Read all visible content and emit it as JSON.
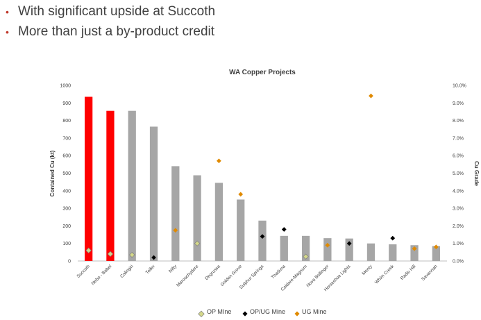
{
  "bullets": [
    "With significant upside at Succoth",
    "More than just a by-product credit"
  ],
  "colors": {
    "bullet": "#c0392b",
    "highlight_bar": "#ff0000",
    "bar": "#a6a6a6",
    "op_marker": "#d4d88a",
    "opug_marker": "#000000",
    "ug_marker": "#e08a00"
  },
  "chart_data": {
    "type": "bar",
    "title": "WA Copper Projects",
    "ylabel": "Contained Cu (kt)",
    "y2label": "Cu Grade",
    "ylim": [
      0,
      1000
    ],
    "y_ticks": [
      "0",
      "100",
      "200",
      "300",
      "400",
      "500",
      "600",
      "700",
      "800",
      "900",
      "1000"
    ],
    "y2lim": [
      0,
      10
    ],
    "y2_ticks": [
      "0.0%",
      "1.0%",
      "2.0%",
      "3.0%",
      "4.0%",
      "5.0%",
      "6.0%",
      "7.0%",
      "8.0%",
      "9.0%",
      "10.0%"
    ],
    "grid": false,
    "legend_position": "bottom",
    "categories": [
      "Succoth",
      "Nebo - Babel",
      "Calingiri",
      "Telfer",
      "Nifty",
      "Maroochydore",
      "Degrussa",
      "Golden Grove",
      "Sulphur Springs",
      "Thaduna",
      "Caldare-Magnum",
      "Nova Bollinger",
      "Horseshoe Lights",
      "Monty",
      "Whim Creek",
      "Radio Hill",
      "Savannah"
    ],
    "values": [
      935,
      855,
      855,
      765,
      540,
      488,
      445,
      350,
      230,
      143,
      143,
      130,
      128,
      100,
      95,
      90,
      85
    ],
    "highlighted": [
      true,
      true,
      false,
      false,
      false,
      false,
      false,
      false,
      false,
      false,
      false,
      false,
      false,
      false,
      false,
      false,
      false
    ],
    "series": [
      {
        "name": "Contained Cu (kt)",
        "values": [
          935,
          855,
          855,
          765,
          540,
          488,
          445,
          350,
          230,
          143,
          143,
          130,
          128,
          100,
          95,
          90,
          85
        ]
      },
      {
        "name": "OP MIne",
        "axis": "right",
        "values": [
          0.6,
          0.4,
          0.35,
          null,
          null,
          1.0,
          null,
          null,
          null,
          null,
          0.25,
          null,
          null,
          null,
          null,
          null,
          null
        ]
      },
      {
        "name": "OP/UG Mine",
        "axis": "right",
        "values": [
          null,
          null,
          null,
          0.2,
          null,
          null,
          null,
          null,
          1.4,
          1.8,
          null,
          null,
          1.0,
          null,
          1.3,
          null,
          null
        ]
      },
      {
        "name": "UG Mine",
        "axis": "right",
        "values": [
          null,
          null,
          null,
          null,
          1.75,
          null,
          5.7,
          3.8,
          null,
          null,
          null,
          0.9,
          null,
          9.4,
          null,
          0.7,
          0.8
        ]
      }
    ]
  }
}
